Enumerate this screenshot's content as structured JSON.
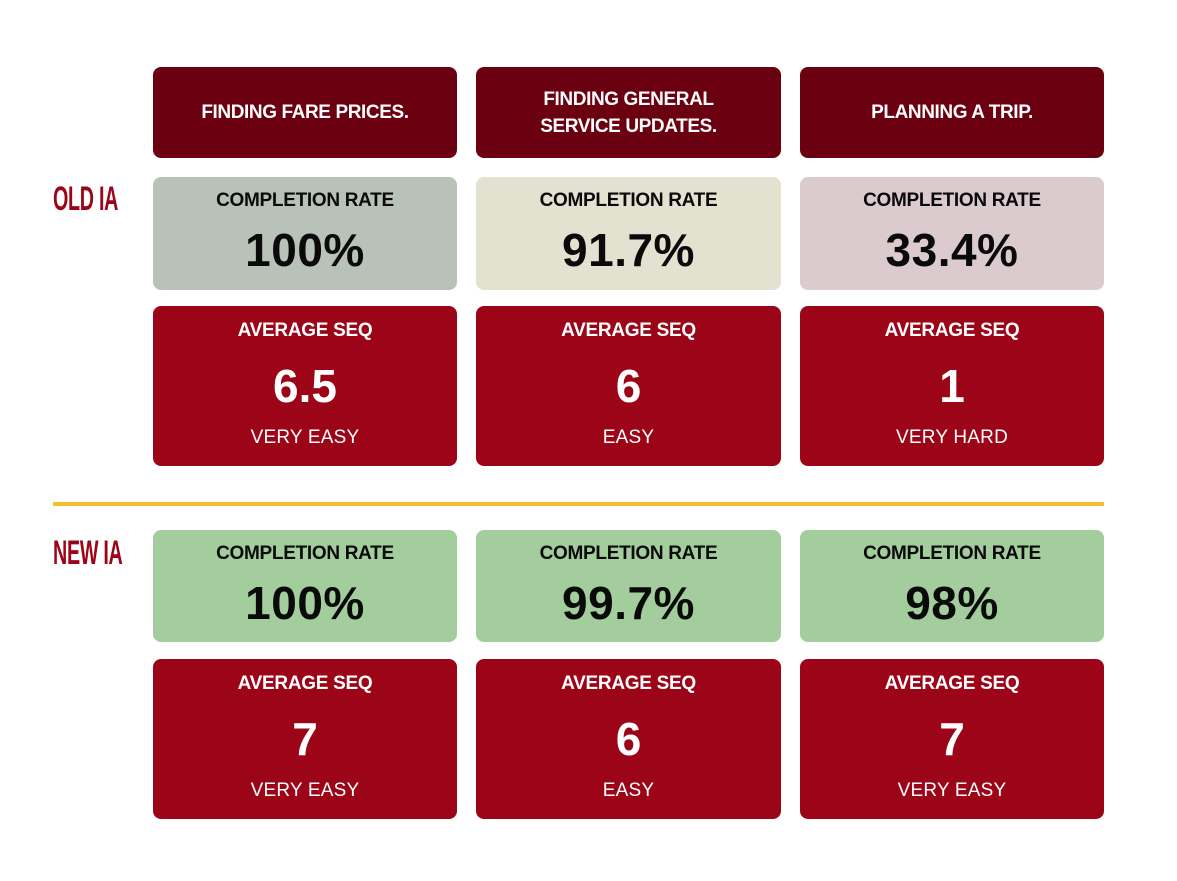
{
  "tasks": [
    {
      "line1": "FINDING FARE PRICES.",
      "line2": ""
    },
    {
      "line1": "FINDING GENERAL",
      "line2": "SERVICE UPDATES."
    },
    {
      "line1": "PLANNING A TRIP.",
      "line2": ""
    }
  ],
  "old_ia": {
    "label": "OLD IA",
    "completion": [
      {
        "label": "COMPLETION RATE",
        "value": "100%",
        "color": "#b9c2b9"
      },
      {
        "label": "COMPLETION RATE",
        "value": "91.7%",
        "color": "#e3e1cf"
      },
      {
        "label": "COMPLETION RATE",
        "value": "33.4%",
        "color": "#dccbce"
      }
    ],
    "seq": [
      {
        "label": "AVERAGE SEQ",
        "value": "6.5",
        "rating": "VERY EASY"
      },
      {
        "label": "AVERAGE SEQ",
        "value": "6",
        "rating": "EASY"
      },
      {
        "label": "AVERAGE SEQ",
        "value": "1",
        "rating": "VERY HARD"
      }
    ]
  },
  "new_ia": {
    "label": "NEW IA",
    "completion": [
      {
        "label": "COMPLETION RATE",
        "value": "100%",
        "color": "#a3cd9c"
      },
      {
        "label": "COMPLETION RATE",
        "value": "99.7%",
        "color": "#a3cd9c"
      },
      {
        "label": "COMPLETION RATE",
        "value": "98%",
        "color": "#a3cd9c"
      }
    ],
    "seq": [
      {
        "label": "AVERAGE SEQ",
        "value": "7",
        "rating": "VERY EASY"
      },
      {
        "label": "AVERAGE SEQ",
        "value": "6",
        "rating": "EASY"
      },
      {
        "label": "AVERAGE SEQ",
        "value": "7",
        "rating": "VERY EASY"
      }
    ]
  },
  "colors": {
    "task_header": "#6b0011",
    "seq_card": "#9c0518",
    "row_label": "#9c0518",
    "divider": "#f2c02f"
  }
}
